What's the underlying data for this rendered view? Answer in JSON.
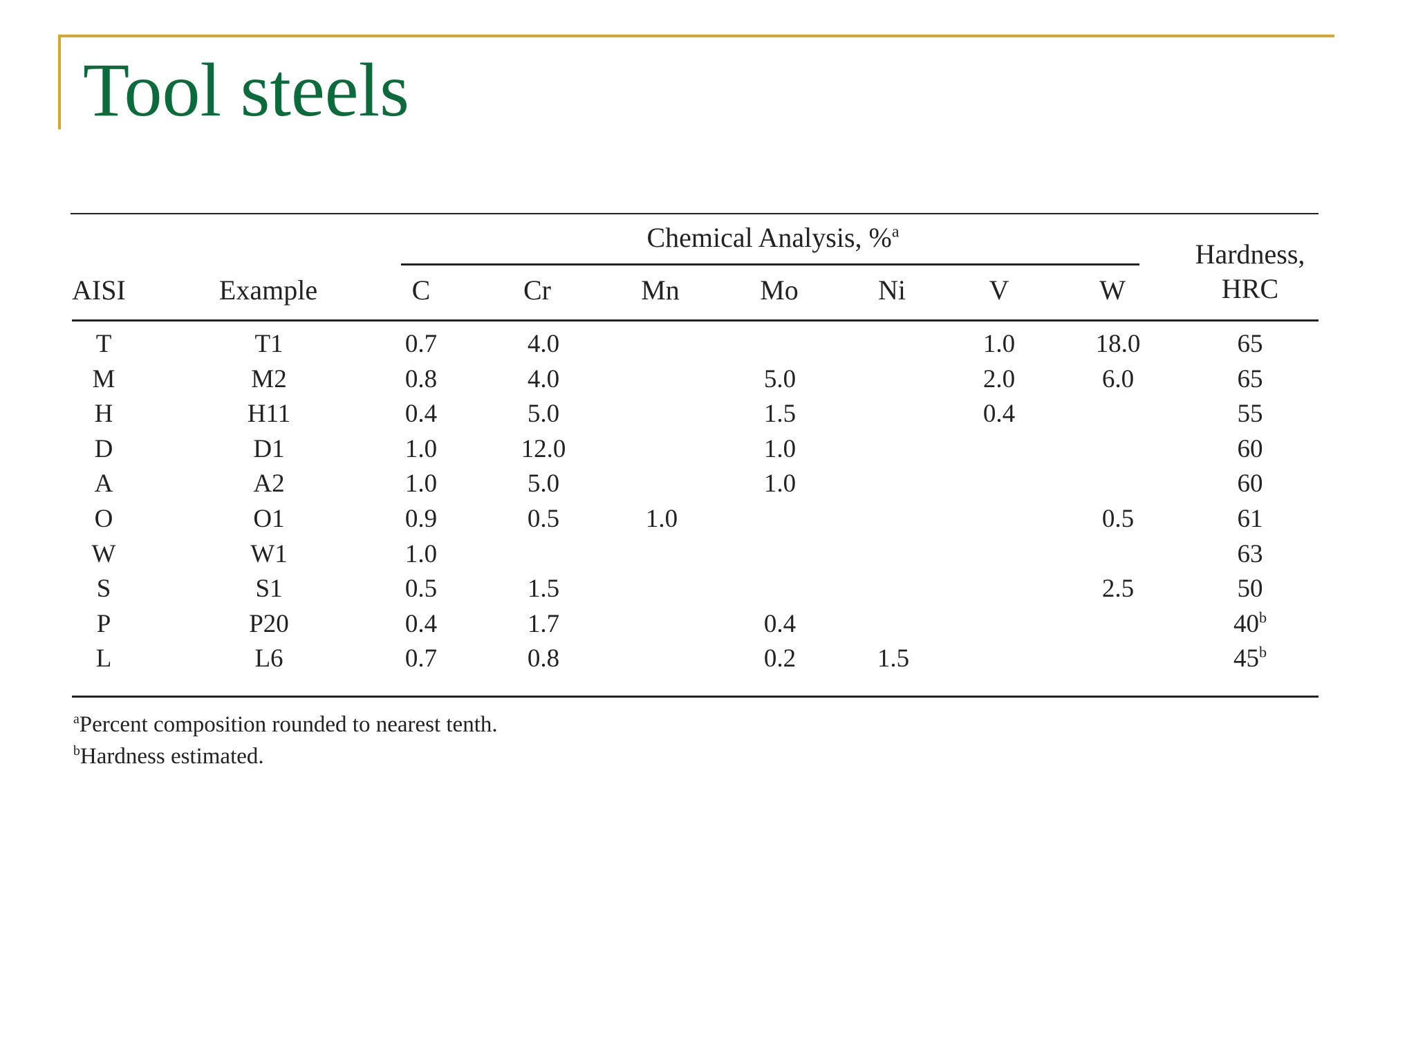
{
  "slide": {
    "title": "Tool steels"
  },
  "table": {
    "group_header": "Chemical Analysis, %",
    "group_header_sup": "a",
    "headers": {
      "aisi": "AISI",
      "example": "Example",
      "c": "C",
      "cr": "Cr",
      "mn": "Mn",
      "mo": "Mo",
      "ni": "Ni",
      "v": "V",
      "w": "W",
      "hardness_line1": "Hardness,",
      "hardness_line2": "HRC"
    },
    "rows": [
      {
        "aisi": "T",
        "example": "T1",
        "c": "0.7",
        "cr": "4.0",
        "mn": "",
        "mo": "",
        "ni": "",
        "v": "1.0",
        "w": "18.0",
        "hrc": "65",
        "hrc_sup": ""
      },
      {
        "aisi": "M",
        "example": "M2",
        "c": "0.8",
        "cr": "4.0",
        "mn": "",
        "mo": "5.0",
        "ni": "",
        "v": "2.0",
        "w": "6.0",
        "hrc": "65",
        "hrc_sup": ""
      },
      {
        "aisi": "H",
        "example": "H11",
        "c": "0.4",
        "cr": "5.0",
        "mn": "",
        "mo": "1.5",
        "ni": "",
        "v": "0.4",
        "w": "",
        "hrc": "55",
        "hrc_sup": ""
      },
      {
        "aisi": "D",
        "example": "D1",
        "c": "1.0",
        "cr": "12.0",
        "mn": "",
        "mo": "1.0",
        "ni": "",
        "v": "",
        "w": "",
        "hrc": "60",
        "hrc_sup": ""
      },
      {
        "aisi": "A",
        "example": "A2",
        "c": "1.0",
        "cr": "5.0",
        "mn": "",
        "mo": "1.0",
        "ni": "",
        "v": "",
        "w": "",
        "hrc": "60",
        "hrc_sup": ""
      },
      {
        "aisi": "O",
        "example": "O1",
        "c": "0.9",
        "cr": "0.5",
        "mn": "1.0",
        "mo": "",
        "ni": "",
        "v": "",
        "w": "0.5",
        "hrc": "61",
        "hrc_sup": ""
      },
      {
        "aisi": "W",
        "example": "W1",
        "c": "1.0",
        "cr": "",
        "mn": "",
        "mo": "",
        "ni": "",
        "v": "",
        "w": "",
        "hrc": "63",
        "hrc_sup": ""
      },
      {
        "aisi": "S",
        "example": "S1",
        "c": "0.5",
        "cr": "1.5",
        "mn": "",
        "mo": "",
        "ni": "",
        "v": "",
        "w": "2.5",
        "hrc": "50",
        "hrc_sup": ""
      },
      {
        "aisi": "P",
        "example": "P20",
        "c": "0.4",
        "cr": "1.7",
        "mn": "",
        "mo": "0.4",
        "ni": "",
        "v": "",
        "w": "",
        "hrc": "40",
        "hrc_sup": "b"
      },
      {
        "aisi": "L",
        "example": "L6",
        "c": "0.7",
        "cr": "0.8",
        "mn": "",
        "mo": "0.2",
        "ni": "1.5",
        "v": "",
        "w": "",
        "hrc": "45",
        "hrc_sup": "b"
      }
    ],
    "footnotes": [
      {
        "mark": "a",
        "text": "Percent composition rounded to nearest tenth."
      },
      {
        "mark": "b",
        "text": "Hardness estimated."
      }
    ]
  }
}
